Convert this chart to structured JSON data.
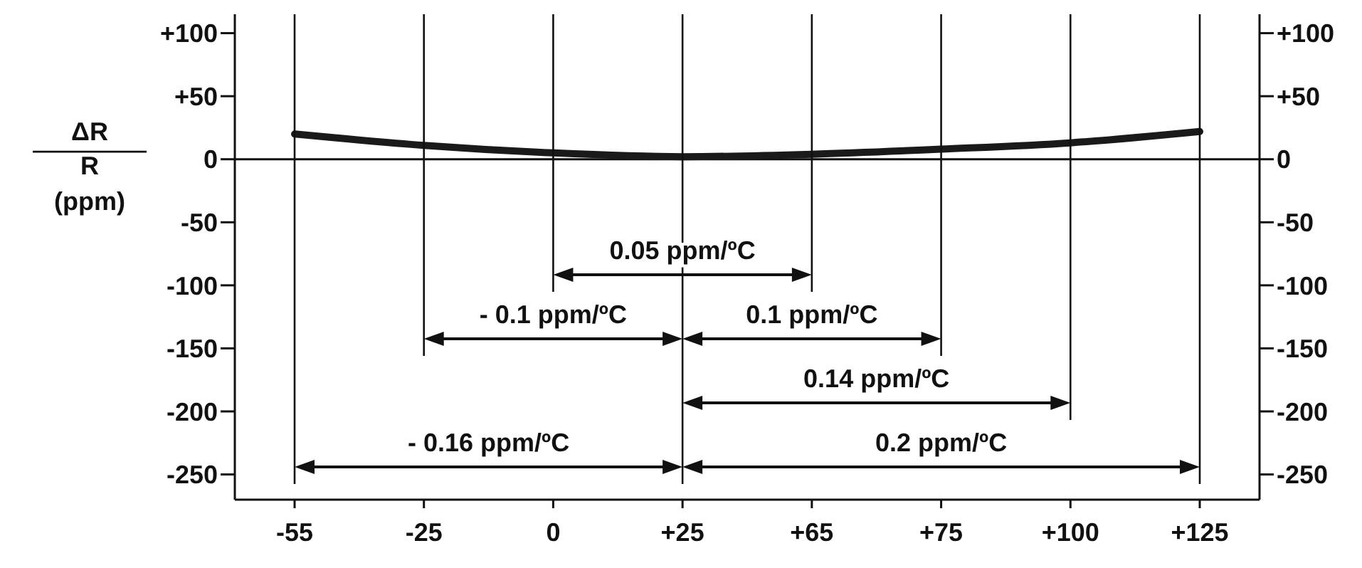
{
  "chart_data": {
    "type": "line",
    "ylabel": "ΔR R (ppm)",
    "categories": [
      "-55",
      "-25",
      "0",
      "+25",
      "+65",
      "+75",
      "+100",
      "+125"
    ],
    "series": [
      {
        "color": "#1a1a1a",
        "values": [
          20,
          11,
          5,
          2,
          4,
          8,
          13,
          22
        ]
      }
    ],
    "ylim": [
      -270,
      115
    ],
    "yticks": [
      {
        "value": 100,
        "label": "+100"
      },
      {
        "value": 50,
        "label": "+50"
      },
      0,
      -50,
      -100,
      -150,
      -200,
      -250
    ],
    "y2lim": [
      -270,
      115
    ],
    "y2ticks": [
      {
        "value": 100,
        "label": "+100"
      },
      {
        "value": 50,
        "label": "+50"
      },
      0,
      -50,
      -100,
      -150,
      -200,
      -250
    ],
    "ref_lines": [
      {
        "axis": "y",
        "value": 0
      }
    ],
    "annotations": [
      "0.05 ppm/ºC",
      "- 0.1 ppm/ºC",
      "0.1 ppm/ºC",
      "0.14 ppm/ºC",
      "- 0.16 ppm/ºC",
      "0.2 ppm/ºC"
    ],
    "grid": "x",
    "legend": false,
    "marker": "none",
    "line_style": "solid"
  }
}
